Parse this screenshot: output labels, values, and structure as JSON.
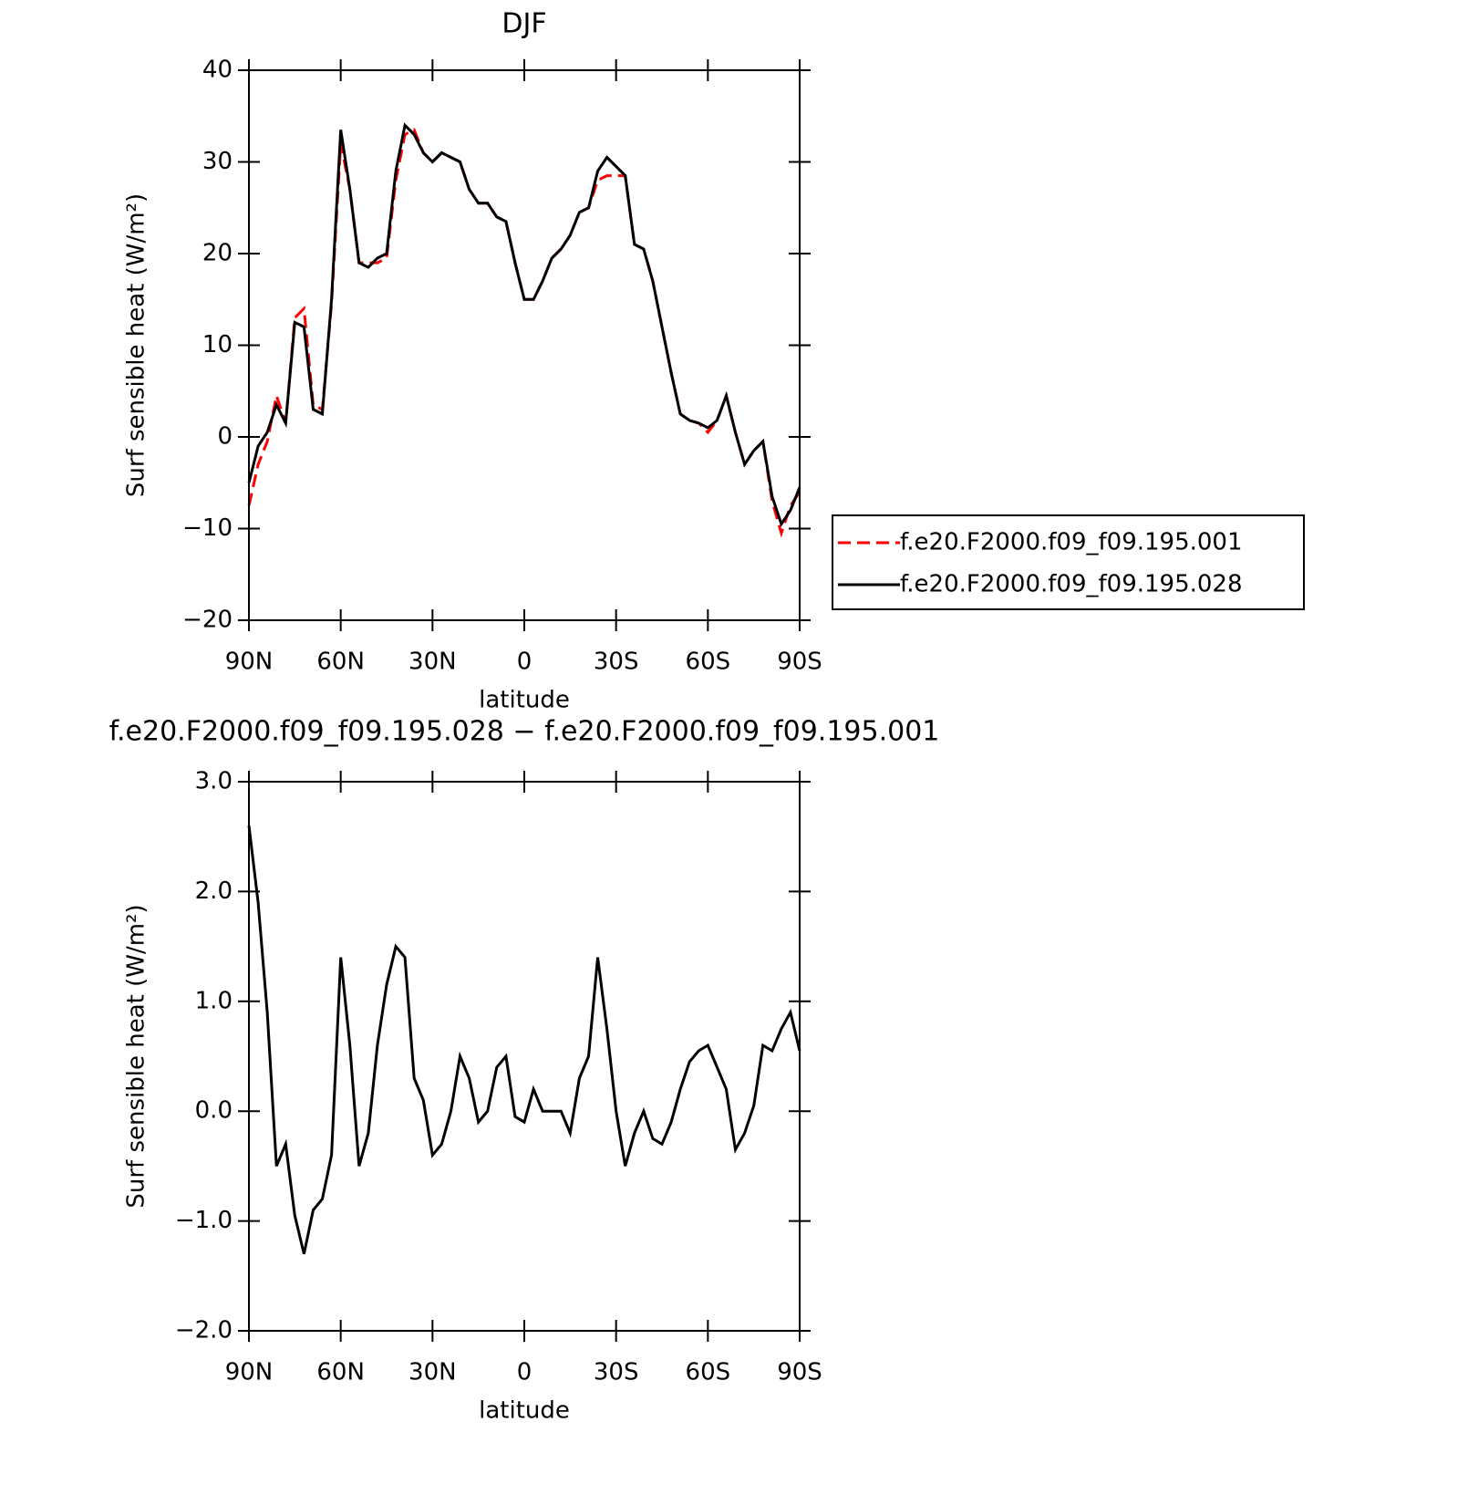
{
  "chart_data": [
    {
      "type": "line",
      "title": "DJF",
      "xlabel": "latitude",
      "ylabel": "Surf sensible heat (W/m²)",
      "x": [
        90,
        87,
        84,
        81,
        78,
        75,
        72,
        69,
        66,
        63,
        60,
        57,
        54,
        51,
        48,
        45,
        42,
        39,
        36,
        33,
        30,
        27,
        24,
        21,
        18,
        15,
        12,
        9,
        6,
        3,
        0,
        -3,
        -6,
        -9,
        -12,
        -15,
        -18,
        -21,
        -24,
        -27,
        -30,
        -33,
        -36,
        -39,
        -42,
        -45,
        -48,
        -51,
        -54,
        -57,
        -60,
        -63,
        -66,
        -69,
        -72,
        -75,
        -78,
        -81,
        -84,
        -87,
        -90
      ],
      "xlim": [
        90,
        -90
      ],
      "xticks": [
        {
          "value": 90,
          "label": "90N"
        },
        {
          "value": 60,
          "label": "60N"
        },
        {
          "value": 30,
          "label": "30N"
        },
        0,
        {
          "value": -30,
          "label": "30S"
        },
        {
          "value": -60,
          "label": "60S"
        },
        {
          "value": -90,
          "label": "90S"
        }
      ],
      "ylim": [
        -20,
        40
      ],
      "yticks": [
        {
          "value": -20,
          "label": "−20"
        },
        {
          "value": -10,
          "label": "−10"
        },
        0,
        10,
        20,
        30,
        40
      ],
      "legend": "right",
      "series": [
        {
          "name": "f.e20.F2000.f09_f09.195.001",
          "color": "#ff0000",
          "dash": "dashed",
          "values": [
            -7.5,
            -3,
            -0.5,
            4.5,
            1.5,
            13,
            14,
            3.5,
            3,
            14.5,
            32,
            27,
            19,
            19,
            19,
            19.5,
            28,
            33,
            33.5,
            31,
            30,
            31,
            30.5,
            30,
            27,
            25.5,
            25.5,
            24,
            23.5,
            19,
            15,
            15,
            17,
            19.5,
            20.5,
            22,
            24.5,
            25,
            28,
            28.5,
            28.5,
            28.5,
            21,
            20.5,
            17,
            12,
            7,
            2.5,
            1.8,
            1.5,
            0.5,
            1.8,
            4.5,
            0.5,
            -3,
            -1.5,
            -0.5,
            -7,
            -10.5,
            -7.5,
            -6
          ]
        },
        {
          "name": "f.e20.F2000.f09_f09.195.028",
          "color": "#000000",
          "dash": "solid",
          "values": [
            -5,
            -1,
            0.5,
            3.5,
            1.5,
            12.5,
            12,
            3,
            2.5,
            15,
            33.5,
            27,
            19,
            18.5,
            19.5,
            20,
            29,
            34,
            33,
            31,
            30,
            31,
            30.5,
            30,
            27,
            25.5,
            25.5,
            24,
            23.5,
            19,
            15,
            15,
            17,
            19.5,
            20.5,
            22,
            24.5,
            25,
            29,
            30.5,
            29.5,
            28.5,
            21,
            20.5,
            17,
            12,
            7,
            2.5,
            1.8,
            1.5,
            1,
            1.8,
            4.5,
            0.5,
            -3,
            -1.5,
            -0.5,
            -6.5,
            -9.5,
            -8,
            -5.5
          ]
        }
      ]
    },
    {
      "type": "line",
      "title": "f.e20.F2000.f09_f09.195.028 − f.e20.F2000.f09_f09.195.001",
      "xlabel": "latitude",
      "ylabel": "Surf sensible heat (W/m²)",
      "x": [
        90,
        87,
        84,
        81,
        78,
        75,
        72,
        69,
        66,
        63,
        60,
        57,
        54,
        51,
        48,
        45,
        42,
        39,
        36,
        33,
        30,
        27,
        24,
        21,
        18,
        15,
        12,
        9,
        6,
        3,
        0,
        -3,
        -6,
        -9,
        -12,
        -15,
        -18,
        -21,
        -24,
        -27,
        -30,
        -33,
        -36,
        -39,
        -42,
        -45,
        -48,
        -51,
        -54,
        -57,
        -60,
        -63,
        -66,
        -69,
        -72,
        -75,
        -78,
        -81,
        -84,
        -87,
        -90
      ],
      "xlim": [
        90,
        -90
      ],
      "xticks": [
        {
          "value": 90,
          "label": "90N"
        },
        {
          "value": 60,
          "label": "60N"
        },
        {
          "value": 30,
          "label": "30N"
        },
        0,
        {
          "value": -30,
          "label": "30S"
        },
        {
          "value": -60,
          "label": "60S"
        },
        {
          "value": -90,
          "label": "90S"
        }
      ],
      "ylim": [
        -2,
        3
      ],
      "yticks": [
        {
          "value": -2,
          "label": "−2.0"
        },
        {
          "value": -1,
          "label": "−1.0"
        },
        {
          "value": 0,
          "label": "0.0"
        },
        {
          "value": 1,
          "label": "1.0"
        },
        {
          "value": 2,
          "label": "2.0"
        },
        {
          "value": 3,
          "label": "3.0"
        }
      ],
      "series": [
        {
          "color": "#000000",
          "dash": "solid",
          "values": [
            2.6,
            1.9,
            0.9,
            -0.5,
            -0.3,
            -0.95,
            -1.3,
            -0.9,
            -0.8,
            -0.4,
            1.4,
            0.6,
            -0.5,
            -0.2,
            0.6,
            1.15,
            1.5,
            1.4,
            0.3,
            0.1,
            -0.4,
            -0.3,
            0,
            0.5,
            0.3,
            -0.1,
            0,
            0.4,
            0.5,
            -0.05,
            -0.1,
            0.2,
            0,
            0,
            0,
            -0.2,
            0.3,
            0.5,
            1.4,
            0.75,
            0,
            -0.5,
            -0.2,
            0,
            -0.25,
            -0.3,
            -0.1,
            0.2,
            0.45,
            0.55,
            0.6,
            0.4,
            0.2,
            -0.35,
            -0.2,
            0.05,
            0.6,
            0.55,
            0.75,
            0.9,
            0.55
          ]
        }
      ]
    }
  ]
}
